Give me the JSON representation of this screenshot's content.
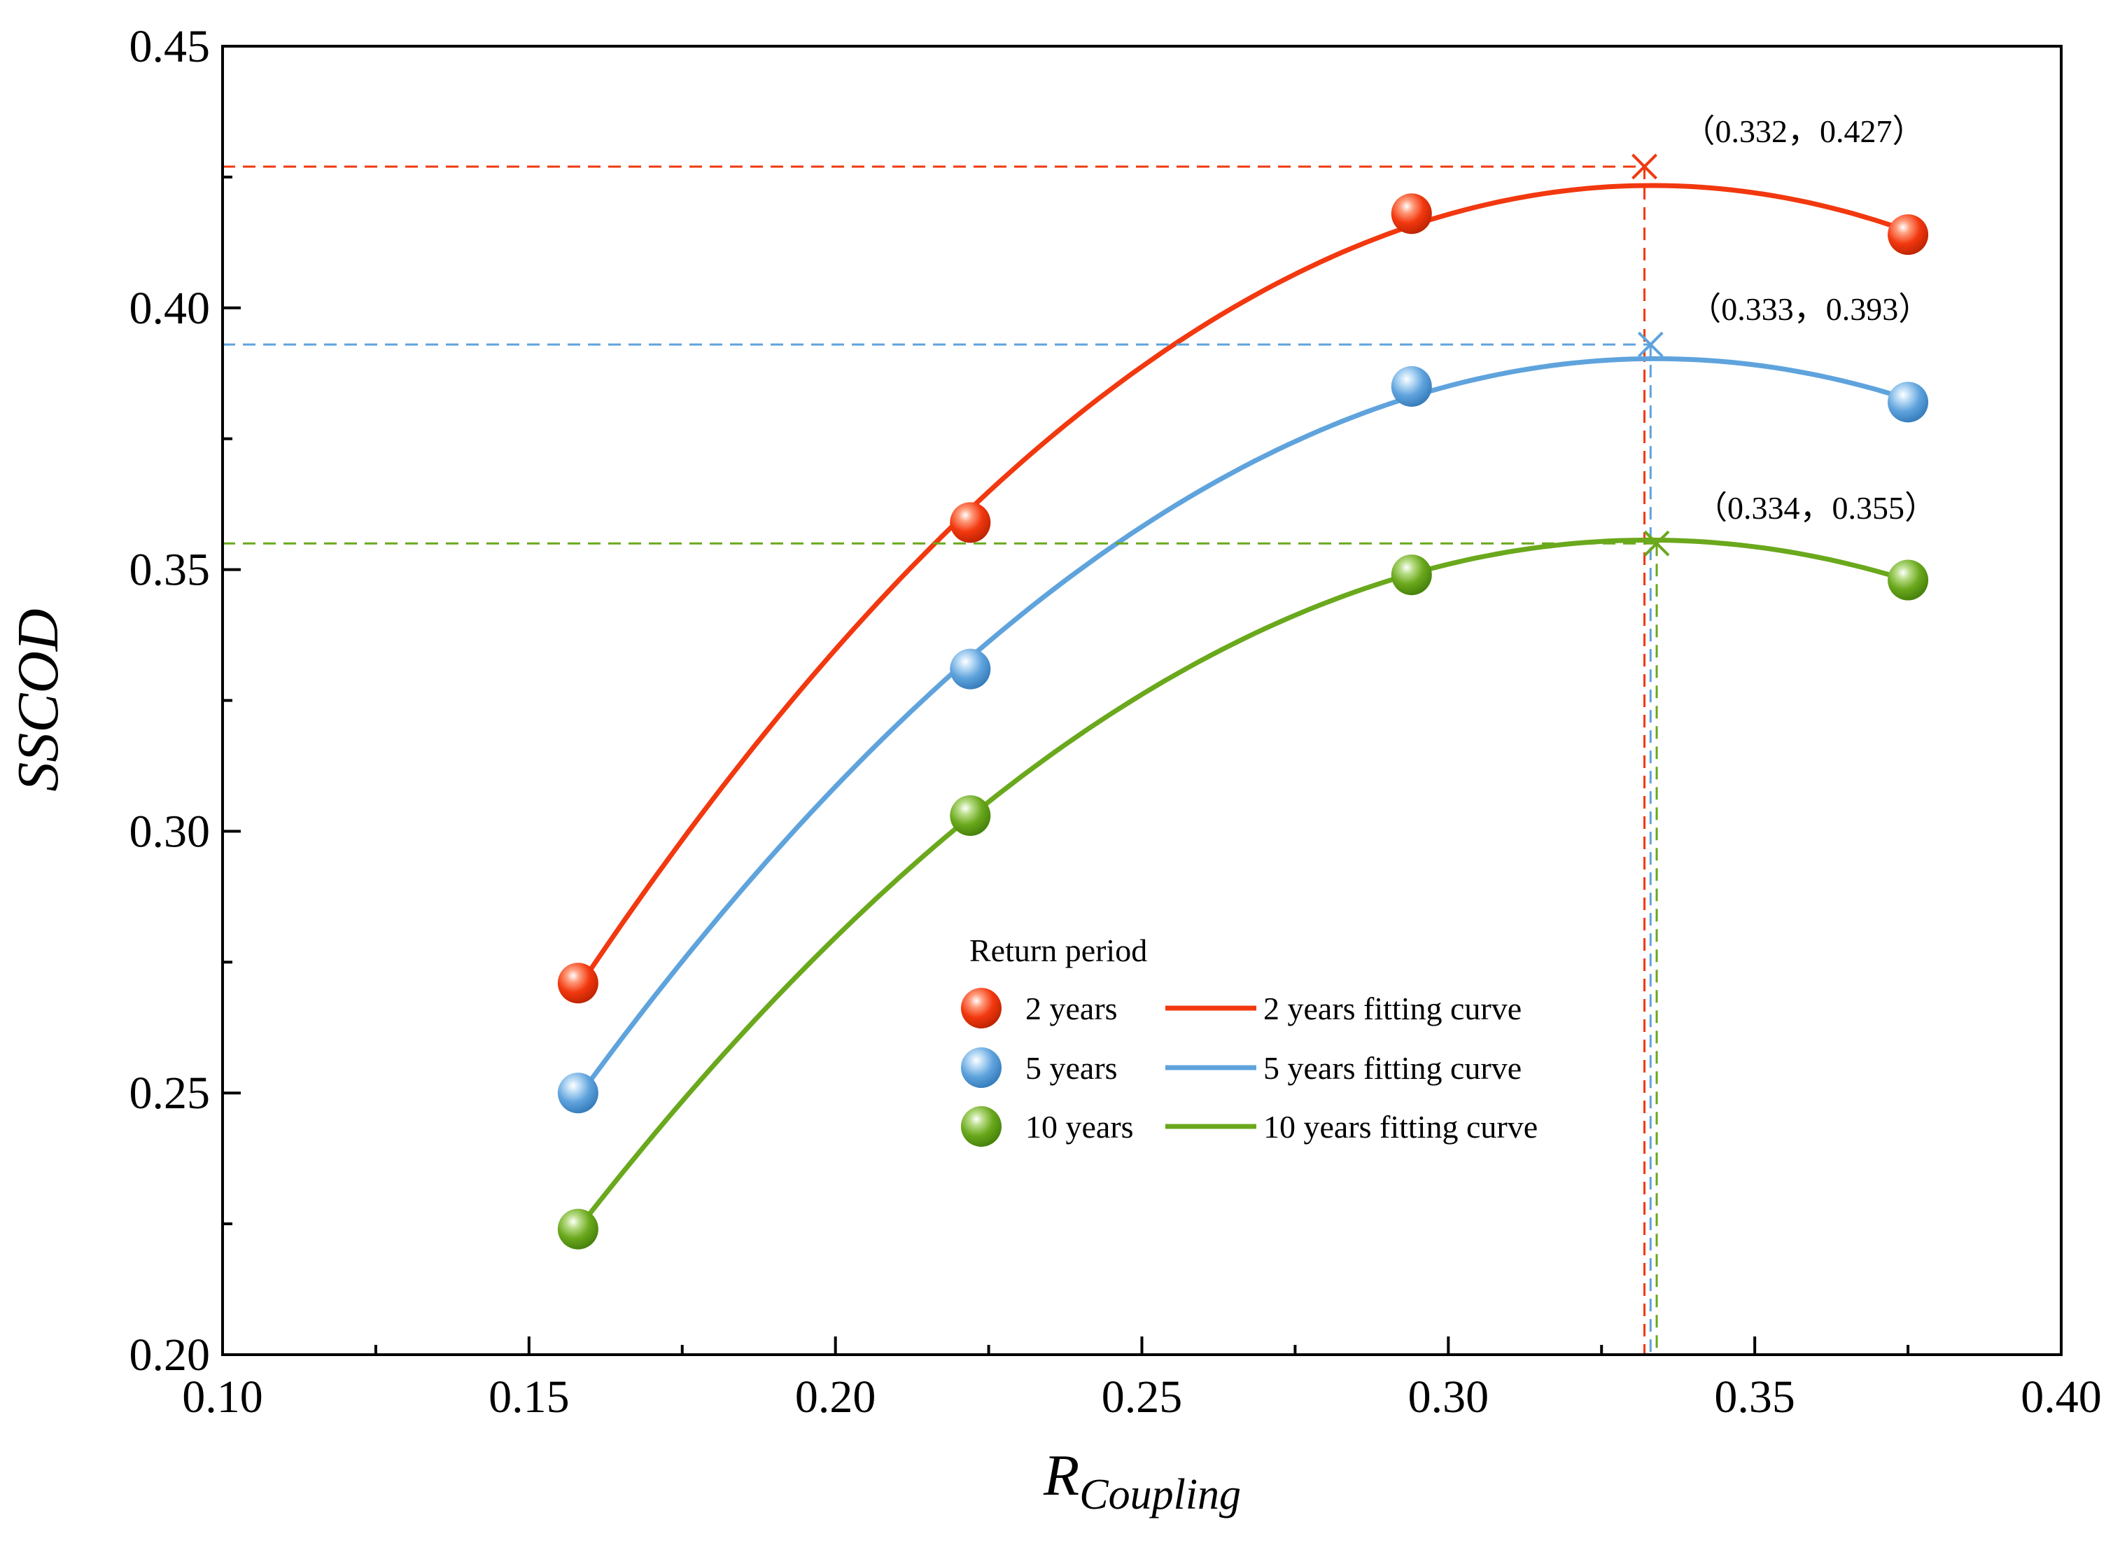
{
  "chart_data": {
    "type": "scatter",
    "title": "",
    "xlabel_main": "R",
    "xlabel_sub": "Coupling",
    "ylabel": "SSCOD",
    "xlim": [
      0.1,
      0.4
    ],
    "ylim": [
      0.2,
      0.45
    ],
    "x_ticks": [
      0.1,
      0.15,
      0.2,
      0.25,
      0.3,
      0.35,
      0.4
    ],
    "x_tick_labels": [
      "0.10",
      "0.15",
      "0.20",
      "0.25",
      "0.30",
      "0.35",
      "0.40"
    ],
    "y_ticks": [
      0.2,
      0.25,
      0.3,
      0.35,
      0.4,
      0.45
    ],
    "y_tick_labels": [
      "0.20",
      "0.25",
      "0.30",
      "0.35",
      "0.40",
      "0.45"
    ],
    "grid": false,
    "legend": {
      "title": "Return period",
      "placement": "center-bottom",
      "point_labels": [
        "2 years",
        "5 years",
        "10 years"
      ],
      "curve_labels": [
        "2 years fitting curve",
        "5 years fitting curve",
        "10 years fitting curve"
      ]
    },
    "series": [
      {
        "name": "2 years",
        "color": "#f2380f",
        "x": [
          0.158,
          0.222,
          0.294,
          0.375
        ],
        "y": [
          0.271,
          0.359,
          0.418,
          0.414
        ],
        "peak": {
          "x": 0.332,
          "y": 0.427,
          "label": "（0.332，0.427）"
        }
      },
      {
        "name": "5 years",
        "color": "#5fa3dd",
        "x": [
          0.158,
          0.222,
          0.294,
          0.375
        ],
        "y": [
          0.25,
          0.331,
          0.385,
          0.382
        ],
        "peak": {
          "x": 0.333,
          "y": 0.393,
          "label": "（0.333，0.393）"
        }
      },
      {
        "name": "10 years",
        "color": "#6aa81c",
        "x": [
          0.158,
          0.222,
          0.294,
          0.375
        ],
        "y": [
          0.224,
          0.303,
          0.349,
          0.348
        ],
        "peak": {
          "x": 0.334,
          "y": 0.355,
          "label": "（0.334，0.355）"
        }
      }
    ]
  }
}
